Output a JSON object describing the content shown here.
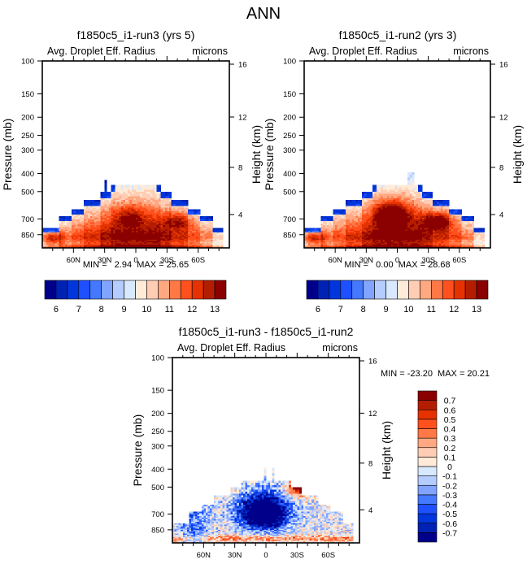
{
  "figure_title": "ANN",
  "chart_data": [
    {
      "type": "heatmap",
      "title": "f1850c5_i1-run3 (yrs 5)",
      "left_string": "Avg. Droplet Eff. Radius",
      "right_string": "microns",
      "ylabel": "Pressure (mb)",
      "ylabel_right": "Height (km)",
      "x_ticks": [
        "60N",
        "30N",
        "0",
        "30S",
        "60S"
      ],
      "x_tick_values": [
        60,
        30,
        0,
        -30,
        -60
      ],
      "xlim": [
        90,
        -90
      ],
      "y_ticks": [
        100,
        150,
        200,
        250,
        300,
        400,
        500,
        700,
        850
      ],
      "ylim": [
        100,
        1000
      ],
      "y_right_ticks": [
        16,
        12,
        8,
        4
      ],
      "stats": {
        "min_label": "MIN =",
        "min": "2.94",
        "max_label": "MAX =",
        "max": "25.65"
      },
      "colorbar": {
        "orientation": "horizontal",
        "levels": [
          6,
          6.5,
          7,
          7.5,
          8,
          8.5,
          9,
          9.5,
          10,
          10.5,
          11,
          11.5,
          12,
          12.5,
          13
        ],
        "labels": [
          "6",
          "7",
          "8",
          "9",
          "10",
          "11",
          "12",
          "13"
        ]
      },
      "field_description": "Large values (~12-13+) near surface 700-850mb in subtropics and high latitudes; cloud tops ~400-500mb in tropics with lower values (~6-9) at cloud edges"
    },
    {
      "type": "heatmap",
      "title": "f1850c5_i1-run2 (yrs 3)",
      "left_string": "Avg. Droplet Eff. Radius",
      "right_string": "microns",
      "ylabel": "Pressure (mb)",
      "ylabel_right": "Height (km)",
      "x_ticks": [
        "60N",
        "30N",
        "0",
        "30S",
        "60S"
      ],
      "x_tick_values": [
        60,
        30,
        0,
        -30,
        -60
      ],
      "xlim": [
        90,
        -90
      ],
      "y_ticks": [
        100,
        150,
        200,
        250,
        300,
        400,
        500,
        700,
        850
      ],
      "ylim": [
        100,
        1000
      ],
      "y_right_ticks": [
        16,
        12,
        8,
        4
      ],
      "stats": {
        "min_label": "MIN =",
        "min": "0.00",
        "max_label": "MAX =",
        "max": "28.68"
      },
      "colorbar": {
        "orientation": "horizontal",
        "levels": [
          6,
          6.5,
          7,
          7.5,
          8,
          8.5,
          9,
          9.5,
          10,
          10.5,
          11,
          11.5,
          12,
          12.5,
          13
        ],
        "labels": [
          "6",
          "7",
          "8",
          "9",
          "10",
          "11",
          "12",
          "13"
        ]
      },
      "field_description": "Stronger maximum (>13) in tropics 600-750mb and southern subtropics"
    },
    {
      "type": "heatmap",
      "title": "f1850c5_i1-run3 - f1850c5_i1-run2",
      "left_string": "Avg. Droplet Eff. Radius",
      "right_string": "microns",
      "ylabel": "Pressure (mb)",
      "ylabel_right": "Height (km)",
      "x_ticks": [
        "60N",
        "30N",
        "0",
        "30S",
        "60S"
      ],
      "x_tick_values": [
        60,
        30,
        0,
        -30,
        -60
      ],
      "xlim": [
        90,
        -90
      ],
      "y_ticks": [
        100,
        150,
        200,
        250,
        300,
        400,
        500,
        700,
        850
      ],
      "ylim": [
        100,
        1000
      ],
      "y_right_ticks": [
        16,
        12,
        8,
        4
      ],
      "stats": {
        "min_label": "MIN =",
        "min": "-23.20",
        "max_label": "MAX =",
        "max": "20.21"
      },
      "colorbar": {
        "orientation": "vertical",
        "levels": [
          -0.7,
          -0.6,
          -0.5,
          -0.4,
          -0.3,
          -0.2,
          -0.1,
          0,
          0.1,
          0.2,
          0.3,
          0.4,
          0.5,
          0.6,
          0.7
        ],
        "labels": [
          "-0.7",
          "-0.6",
          "-0.5",
          "-0.4",
          "-0.3",
          "-0.2",
          "-0.1",
          "0",
          "0.1",
          "0.2",
          "0.3",
          "0.4",
          "0.5",
          "0.6",
          "0.7"
        ]
      },
      "field_description": "Strong negative difference (< -0.7) in tropics 550-850mb; positive differences near cloud tops 450-550mb in subtropics"
    }
  ],
  "colormap": [
    "#00008b",
    "#0022b4",
    "#0036dc",
    "#1e50ff",
    "#4478ff",
    "#80a4ff",
    "#b4ccff",
    "#d8e8ff",
    "#ffebd7",
    "#ffcdb4",
    "#ffa882",
    "#ff7846",
    "#ff501e",
    "#e63200",
    "#b41e00",
    "#8b0000"
  ]
}
